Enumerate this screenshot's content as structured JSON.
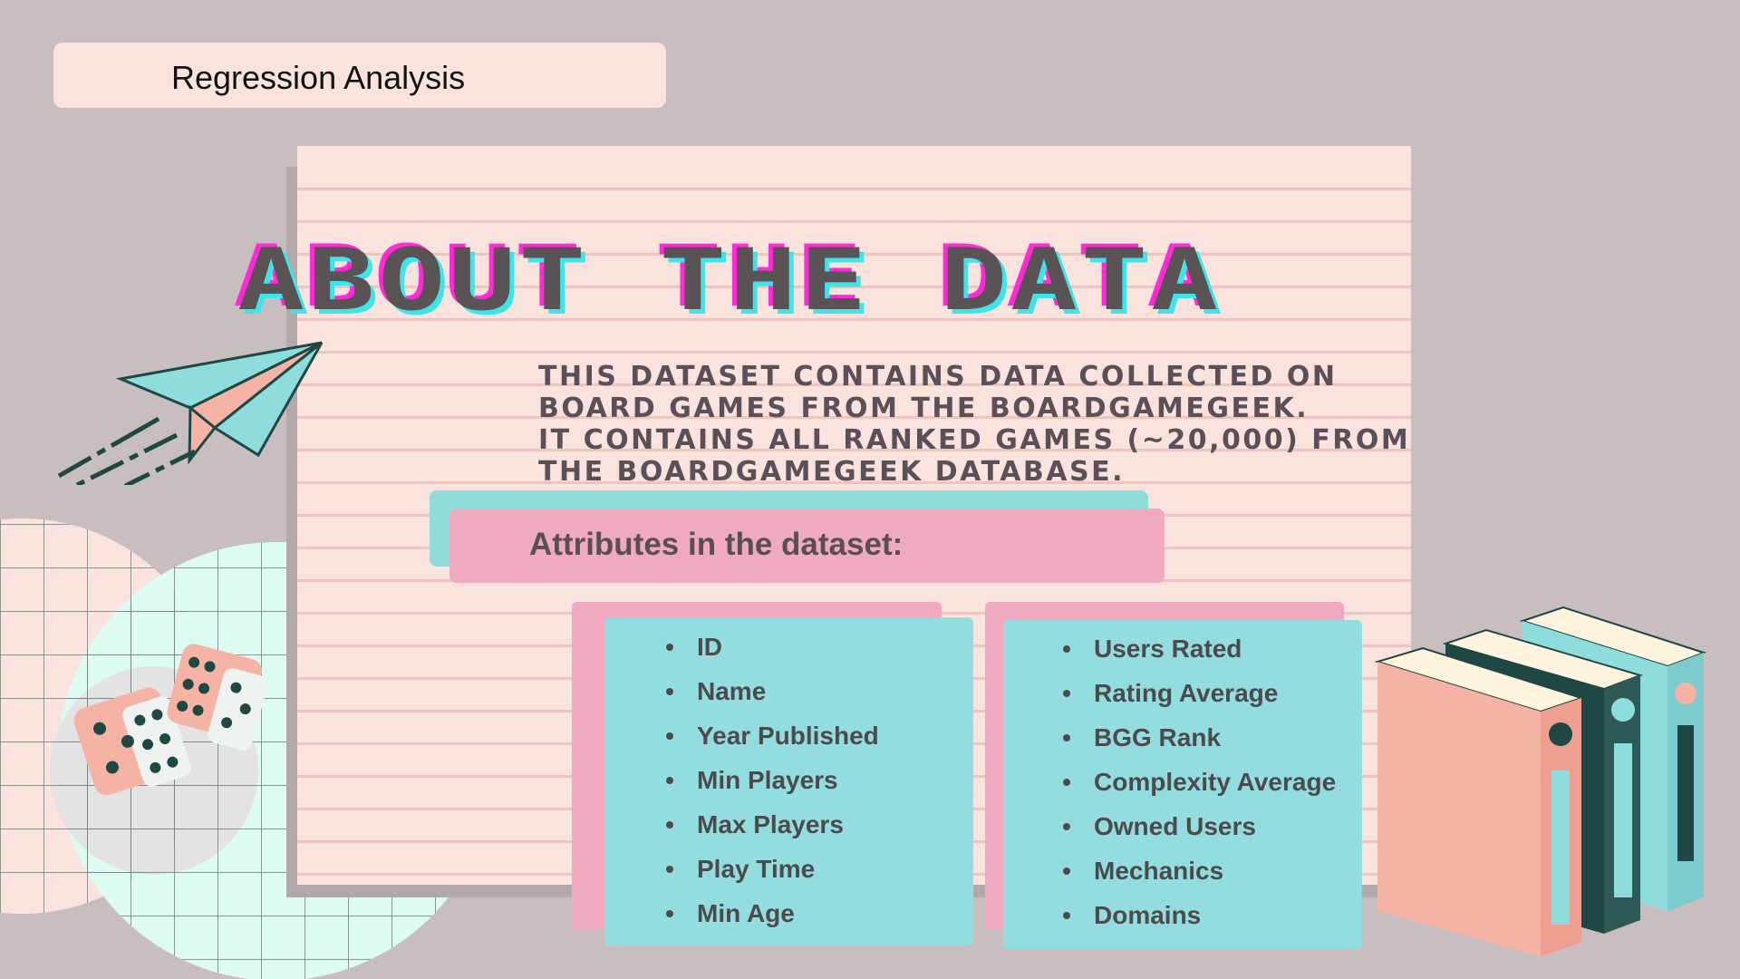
{
  "header": {
    "label": "Regression Analysis"
  },
  "title": "ABOUT THE DATA",
  "description": [
    "This dataset contains data collected on",
    "board games from the BoardGameGeek.",
    "It contains all ranked games (~20,000) from",
    "the BoardGameGeek database."
  ],
  "attributes_heading": "Attributes in the dataset:",
  "attributes_left": [
    "ID",
    "Name",
    "Year Published",
    "Min Players",
    "Max Players",
    "Play Time",
    "Min Age"
  ],
  "attributes_right": [
    "Users Rated",
    "Rating Average",
    "BGG Rank",
    "Complexity Average",
    "Owned Users",
    "Mechanics",
    "Domains"
  ],
  "colors": {
    "background": "#c9bebf",
    "paper": "#fbe3dd",
    "teal": "#93dde0",
    "pink": "#efaabf",
    "title_magenta": "#ff2bd6",
    "title_cyan": "#3de4e8",
    "title_gray": "#5a5355"
  },
  "icons": [
    "paper-plane-icon",
    "dice-icon",
    "books-icon"
  ]
}
